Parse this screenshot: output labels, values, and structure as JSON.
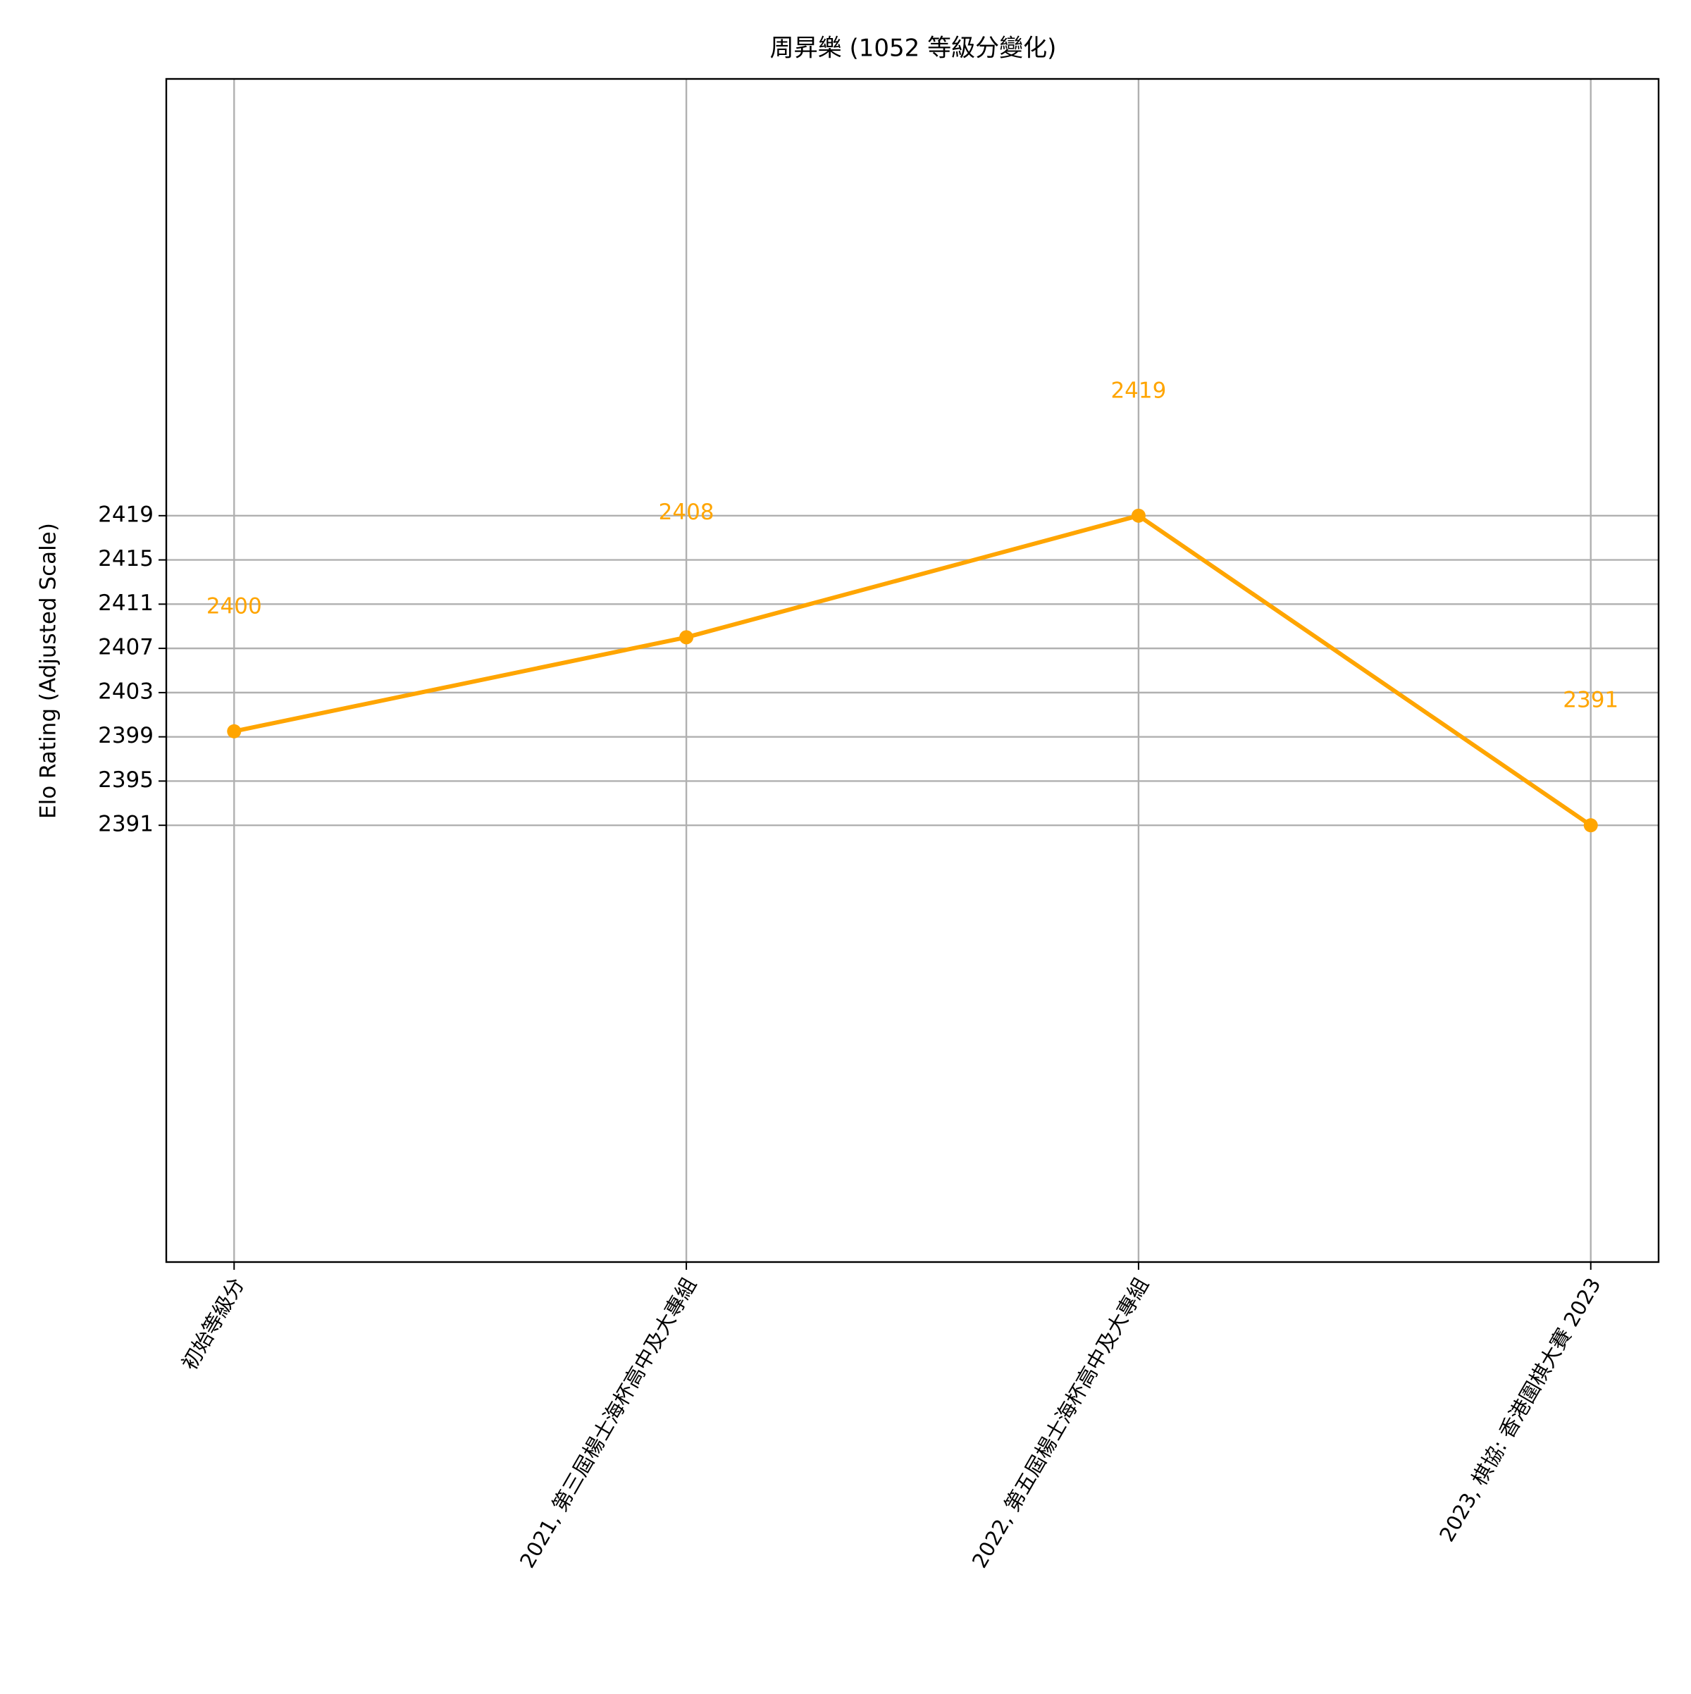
{
  "chart_data": {
    "type": "line",
    "title": "周昇樂 (1052 等級分變化)",
    "y_label": "Elo Rating (Adjusted Scale)",
    "categories": [
      "初始等級分",
      "2021, 第三屆楊士海杯高中及大專組",
      "2022, 第五屆楊士海杯高中及大專組",
      "2023, 棋協: 香港圍棋大賽 2023"
    ],
    "series": [
      {
        "name": "Elo Rating",
        "color": "#ffa500",
        "values": [
          2399.5,
          2408,
          2419,
          2391
        ],
        "value_labels": [
          "2400",
          "2408",
          "2419",
          "2391"
        ]
      }
    ],
    "ylim": [
      2351.5,
      2458.5
    ],
    "yticks": [
      2391,
      2395,
      2399,
      2403,
      2407,
      2411,
      2415,
      2419
    ],
    "grid": true
  }
}
